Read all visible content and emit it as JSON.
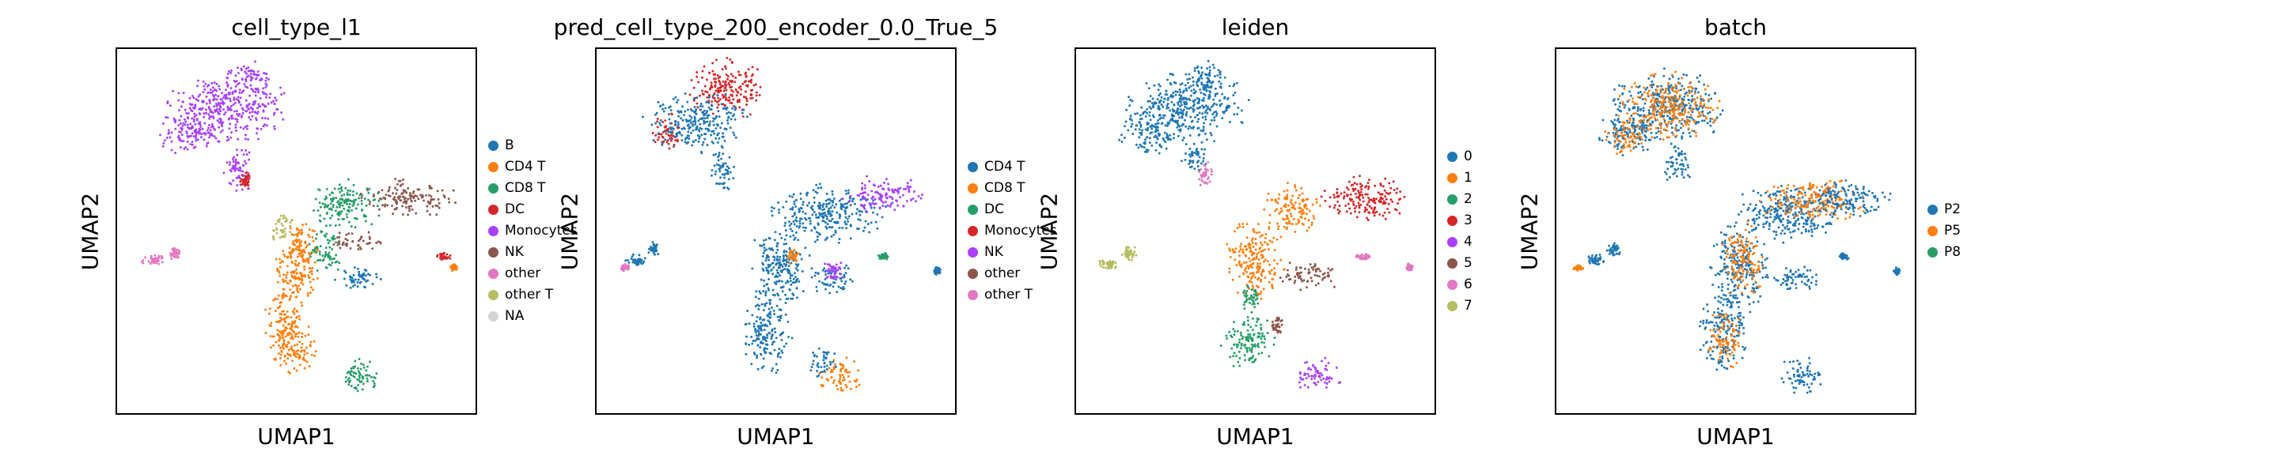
{
  "chart_data": [
    {
      "type": "scatter",
      "title": "cell_type_l1",
      "xlabel": "UMAP1",
      "ylabel": "UMAP2",
      "grid": false,
      "legend_position": "right",
      "series": [
        {
          "name": "B",
          "color": "#1f77b4"
        },
        {
          "name": "CD4 T",
          "color": "#ff7f0e"
        },
        {
          "name": "CD8 T",
          "color": "#279e68"
        },
        {
          "name": "DC",
          "color": "#d62728"
        },
        {
          "name": "Monocytes",
          "color": "#aa40fc"
        },
        {
          "name": "NK",
          "color": "#8c564b"
        },
        {
          "name": "other",
          "color": "#e377c2"
        },
        {
          "name": "other T",
          "color": "#b5bd61"
        },
        {
          "name": "NA",
          "color": "#d3d3d3"
        }
      ],
      "clusters": [
        {
          "s": "Monocytes",
          "x": 0.31,
          "y": 0.16,
          "rx": 0.16,
          "ry": 0.1
        },
        {
          "s": "Monocytes",
          "x": 0.2,
          "y": 0.23,
          "rx": 0.08,
          "ry": 0.06
        },
        {
          "s": "Monocytes",
          "x": 0.37,
          "y": 0.08,
          "rx": 0.06,
          "ry": 0.05
        },
        {
          "s": "Monocytes",
          "x": 0.34,
          "y": 0.33,
          "rx": 0.04,
          "ry": 0.07
        },
        {
          "s": "DC",
          "x": 0.36,
          "y": 0.36,
          "rx": 0.015,
          "ry": 0.02
        },
        {
          "s": "CD8 T",
          "x": 0.63,
          "y": 0.43,
          "rx": 0.1,
          "ry": 0.07
        },
        {
          "s": "NK",
          "x": 0.81,
          "y": 0.41,
          "rx": 0.13,
          "ry": 0.05
        },
        {
          "s": "NK",
          "x": 0.66,
          "y": 0.53,
          "rx": 0.07,
          "ry": 0.03
        },
        {
          "s": "CD4 T",
          "x": 0.52,
          "y": 0.53,
          "rx": 0.05,
          "ry": 0.07
        },
        {
          "s": "CD4 T",
          "x": 0.5,
          "y": 0.62,
          "rx": 0.06,
          "ry": 0.1
        },
        {
          "s": "CD4 T",
          "x": 0.47,
          "y": 0.76,
          "rx": 0.06,
          "ry": 0.1
        },
        {
          "s": "CD4 T",
          "x": 0.5,
          "y": 0.83,
          "rx": 0.06,
          "ry": 0.06
        },
        {
          "s": "CD8 T",
          "x": 0.58,
          "y": 0.56,
          "rx": 0.05,
          "ry": 0.06
        },
        {
          "s": "other T",
          "x": 0.46,
          "y": 0.49,
          "rx": 0.04,
          "ry": 0.04
        },
        {
          "s": "B",
          "x": 0.68,
          "y": 0.63,
          "rx": 0.07,
          "ry": 0.035
        },
        {
          "s": "CD8 T",
          "x": 0.68,
          "y": 0.9,
          "rx": 0.06,
          "ry": 0.05
        },
        {
          "s": "other",
          "x": 0.1,
          "y": 0.58,
          "rx": 0.03,
          "ry": 0.015
        },
        {
          "s": "other",
          "x": 0.16,
          "y": 0.56,
          "rx": 0.02,
          "ry": 0.02
        },
        {
          "s": "DC",
          "x": 0.91,
          "y": 0.57,
          "rx": 0.02,
          "ry": 0.01
        },
        {
          "s": "CD4 T",
          "x": 0.94,
          "y": 0.6,
          "rx": 0.01,
          "ry": 0.01
        }
      ]
    },
    {
      "type": "scatter",
      "title": "pred_cell_type_200_encoder_0.0_True_5",
      "xlabel": "UMAP1",
      "ylabel": "UMAP2",
      "grid": false,
      "legend_position": "right",
      "series": [
        {
          "name": "CD4 T",
          "color": "#1f77b4"
        },
        {
          "name": "CD8 T",
          "color": "#ff7f0e"
        },
        {
          "name": "DC",
          "color": "#279e68"
        },
        {
          "name": "Monocytes",
          "color": "#d62728"
        },
        {
          "name": "NK",
          "color": "#aa40fc"
        },
        {
          "name": "other",
          "color": "#8c564b"
        },
        {
          "name": "other T",
          "color": "#e377c2"
        }
      ],
      "clusters": [
        {
          "s": "Monocytes",
          "x": 0.36,
          "y": 0.11,
          "rx": 0.11,
          "ry": 0.08
        },
        {
          "s": "Monocytes",
          "x": 0.2,
          "y": 0.23,
          "rx": 0.05,
          "ry": 0.05
        },
        {
          "s": "CD4 T",
          "x": 0.28,
          "y": 0.2,
          "rx": 0.14,
          "ry": 0.08
        },
        {
          "s": "CD4 T",
          "x": 0.35,
          "y": 0.33,
          "rx": 0.04,
          "ry": 0.06
        },
        {
          "s": "CD4 T",
          "x": 0.65,
          "y": 0.45,
          "rx": 0.15,
          "ry": 0.08
        },
        {
          "s": "NK",
          "x": 0.8,
          "y": 0.4,
          "rx": 0.11,
          "ry": 0.05
        },
        {
          "s": "CD4 T",
          "x": 0.51,
          "y": 0.6,
          "rx": 0.08,
          "ry": 0.12
        },
        {
          "s": "CD4 T",
          "x": 0.47,
          "y": 0.78,
          "rx": 0.07,
          "ry": 0.11
        },
        {
          "s": "CD4 T",
          "x": 0.66,
          "y": 0.63,
          "rx": 0.07,
          "ry": 0.04
        },
        {
          "s": "NK",
          "x": 0.66,
          "y": 0.61,
          "rx": 0.03,
          "ry": 0.03
        },
        {
          "s": "CD8 T",
          "x": 0.55,
          "y": 0.57,
          "rx": 0.02,
          "ry": 0.02
        },
        {
          "s": "CD8 T",
          "x": 0.68,
          "y": 0.9,
          "rx": 0.06,
          "ry": 0.05
        },
        {
          "s": "CD4 T",
          "x": 0.63,
          "y": 0.86,
          "rx": 0.04,
          "ry": 0.04
        },
        {
          "s": "CD4 T",
          "x": 0.11,
          "y": 0.58,
          "rx": 0.03,
          "ry": 0.015
        },
        {
          "s": "other T",
          "x": 0.08,
          "y": 0.6,
          "rx": 0.015,
          "ry": 0.01
        },
        {
          "s": "CD4 T",
          "x": 0.16,
          "y": 0.55,
          "rx": 0.02,
          "ry": 0.02
        },
        {
          "s": "DC",
          "x": 0.8,
          "y": 0.57,
          "rx": 0.015,
          "ry": 0.01
        },
        {
          "s": "CD4 T",
          "x": 0.95,
          "y": 0.61,
          "rx": 0.01,
          "ry": 0.01
        }
      ]
    },
    {
      "type": "scatter",
      "title": "leiden",
      "xlabel": "UMAP1",
      "ylabel": "UMAP2",
      "grid": false,
      "legend_position": "right",
      "series": [
        {
          "name": "0",
          "color": "#1f77b4"
        },
        {
          "name": "1",
          "color": "#ff7f0e"
        },
        {
          "name": "2",
          "color": "#279e68"
        },
        {
          "name": "3",
          "color": "#d62728"
        },
        {
          "name": "4",
          "color": "#aa40fc"
        },
        {
          "name": "5",
          "color": "#8c564b"
        },
        {
          "name": "6",
          "color": "#e377c2"
        },
        {
          "name": "7",
          "color": "#b5bd61"
        }
      ],
      "clusters": [
        {
          "s": "0",
          "x": 0.31,
          "y": 0.16,
          "rx": 0.16,
          "ry": 0.1
        },
        {
          "s": "0",
          "x": 0.2,
          "y": 0.23,
          "rx": 0.08,
          "ry": 0.06
        },
        {
          "s": "0",
          "x": 0.37,
          "y": 0.08,
          "rx": 0.06,
          "ry": 0.05
        },
        {
          "s": "0",
          "x": 0.33,
          "y": 0.3,
          "rx": 0.04,
          "ry": 0.05
        },
        {
          "s": "6",
          "x": 0.36,
          "y": 0.35,
          "rx": 0.02,
          "ry": 0.04
        },
        {
          "s": "3",
          "x": 0.81,
          "y": 0.41,
          "rx": 0.13,
          "ry": 0.06
        },
        {
          "s": "1",
          "x": 0.6,
          "y": 0.44,
          "rx": 0.08,
          "ry": 0.07
        },
        {
          "s": "1",
          "x": 0.5,
          "y": 0.58,
          "rx": 0.08,
          "ry": 0.11
        },
        {
          "s": "5",
          "x": 0.65,
          "y": 0.62,
          "rx": 0.08,
          "ry": 0.04
        },
        {
          "s": "2",
          "x": 0.48,
          "y": 0.8,
          "rx": 0.07,
          "ry": 0.08
        },
        {
          "s": "2",
          "x": 0.49,
          "y": 0.69,
          "rx": 0.03,
          "ry": 0.05
        },
        {
          "s": "5",
          "x": 0.56,
          "y": 0.76,
          "rx": 0.02,
          "ry": 0.03
        },
        {
          "s": "4",
          "x": 0.68,
          "y": 0.9,
          "rx": 0.06,
          "ry": 0.05
        },
        {
          "s": "7",
          "x": 0.09,
          "y": 0.59,
          "rx": 0.03,
          "ry": 0.015
        },
        {
          "s": "7",
          "x": 0.15,
          "y": 0.56,
          "rx": 0.02,
          "ry": 0.02
        },
        {
          "s": "6",
          "x": 0.8,
          "y": 0.57,
          "rx": 0.02,
          "ry": 0.01
        },
        {
          "s": "6",
          "x": 0.93,
          "y": 0.6,
          "rx": 0.01,
          "ry": 0.01
        }
      ]
    },
    {
      "type": "scatter",
      "title": "batch",
      "xlabel": "UMAP1",
      "ylabel": "UMAP2",
      "grid": false,
      "legend_position": "right",
      "series": [
        {
          "name": "P2",
          "color": "#1f77b4"
        },
        {
          "name": "P5",
          "color": "#ff7f0e"
        },
        {
          "name": "P8",
          "color": "#279e68"
        }
      ],
      "clusters": [
        {
          "s": "P2",
          "x": 0.31,
          "y": 0.16,
          "rx": 0.16,
          "ry": 0.1
        },
        {
          "s": "P5",
          "x": 0.31,
          "y": 0.16,
          "rx": 0.14,
          "ry": 0.09
        },
        {
          "s": "P2",
          "x": 0.2,
          "y": 0.23,
          "rx": 0.08,
          "ry": 0.06
        },
        {
          "s": "P5",
          "x": 0.2,
          "y": 0.24,
          "rx": 0.06,
          "ry": 0.05
        },
        {
          "s": "P2",
          "x": 0.34,
          "y": 0.32,
          "rx": 0.04,
          "ry": 0.06
        },
        {
          "s": "P2",
          "x": 0.65,
          "y": 0.45,
          "rx": 0.15,
          "ry": 0.08
        },
        {
          "s": "P5",
          "x": 0.72,
          "y": 0.42,
          "rx": 0.15,
          "ry": 0.06
        },
        {
          "s": "P2",
          "x": 0.81,
          "y": 0.41,
          "rx": 0.12,
          "ry": 0.05
        },
        {
          "s": "P2",
          "x": 0.51,
          "y": 0.6,
          "rx": 0.08,
          "ry": 0.12
        },
        {
          "s": "P5",
          "x": 0.52,
          "y": 0.58,
          "rx": 0.06,
          "ry": 0.1
        },
        {
          "s": "P2",
          "x": 0.47,
          "y": 0.78,
          "rx": 0.07,
          "ry": 0.11
        },
        {
          "s": "P5",
          "x": 0.47,
          "y": 0.8,
          "rx": 0.05,
          "ry": 0.08
        },
        {
          "s": "P2",
          "x": 0.66,
          "y": 0.63,
          "rx": 0.07,
          "ry": 0.04
        },
        {
          "s": "P2",
          "x": 0.68,
          "y": 0.9,
          "rx": 0.06,
          "ry": 0.05
        },
        {
          "s": "P5",
          "x": 0.06,
          "y": 0.6,
          "rx": 0.015,
          "ry": 0.01
        },
        {
          "s": "P2",
          "x": 0.11,
          "y": 0.58,
          "rx": 0.03,
          "ry": 0.015
        },
        {
          "s": "P2",
          "x": 0.16,
          "y": 0.55,
          "rx": 0.02,
          "ry": 0.02
        },
        {
          "s": "P2",
          "x": 0.8,
          "y": 0.57,
          "rx": 0.015,
          "ry": 0.01
        },
        {
          "s": "P2",
          "x": 0.95,
          "y": 0.61,
          "rx": 0.01,
          "ry": 0.01
        }
      ]
    }
  ]
}
